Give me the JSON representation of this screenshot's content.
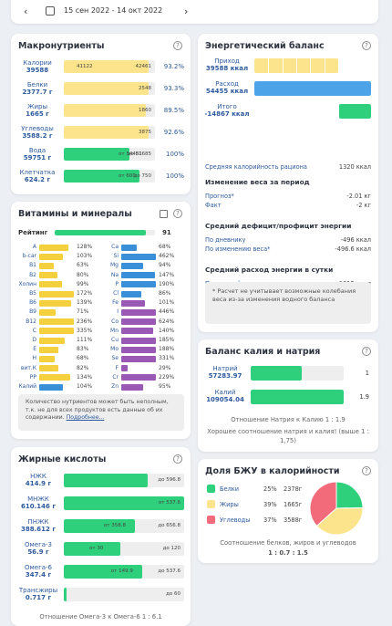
{
  "date_range": "15 сен 2022 - 14 окт 2022",
  "macro": {
    "title": "Макронутриенты",
    "rows": [
      {
        "name": "Калории",
        "value": "39588",
        "m1": "41122",
        "m2": "42461",
        "pct": "93.2%",
        "color": "#fbe48b",
        "fill": 0.93
      },
      {
        "name": "Белки",
        "value": "2377.7 г",
        "m1": "",
        "m2": "2548",
        "pct": "93.3%",
        "color": "#fbe48b",
        "fill": 0.93
      },
      {
        "name": "Жиры",
        "value": "1665 г",
        "m1": "",
        "m2": "1860",
        "pct": "89.5%",
        "color": "#fbe48b",
        "fill": 0.895
      },
      {
        "name": "Углеводы",
        "value": "3588.2 г",
        "m1": "",
        "m2": "3875",
        "pct": "92.6%",
        "color": "#fbe48b",
        "fill": 0.926
      },
      {
        "name": "Вода",
        "value": "59751 г",
        "m1": "от 54451",
        "m2": "до 81685",
        "pct": "100%",
        "color": "#2ed07b",
        "fill": 0.72
      },
      {
        "name": "Клетчатка",
        "value": "624.2 г",
        "m1": "от 600",
        "m2": "до 750",
        "pct": "100%",
        "color": "#2ed07b",
        "fill": 0.83
      }
    ]
  },
  "energy": {
    "title": "Энергетический баланс",
    "rows": [
      {
        "name": "Приход",
        "value": "39588 ккал",
        "color": "#fbe48b",
        "fill": 0.72
      },
      {
        "name": "Расход",
        "value": "54455 ккал",
        "color": "#4da3e8",
        "fill": 1.0
      },
      {
        "name": "Итого",
        "value": "-14867 ккал",
        "color": "#2ed07b",
        "fill": 0.27
      }
    ],
    "avg_label": "Средняя калорийность рациона",
    "avg_value": "1320 ккал",
    "sections": [
      {
        "head": "Изменение веса за период",
        "items": [
          {
            "k": "Прогноз*",
            "v": "-2.01 кг"
          },
          {
            "k": "Факт",
            "v": "-2 кг"
          }
        ]
      },
      {
        "head": "Средний дефицит/профицит энергии",
        "items": [
          {
            "k": "По дневнику",
            "v": "-496 ккал"
          },
          {
            "k": "По изменению веса*",
            "v": "-496.6 ккал"
          }
        ]
      },
      {
        "head": "Средний расход энергии в сутки",
        "items": [
          {
            "k": "По настройкам",
            "v": "1815 ккал"
          },
          {
            "k": "По изменению веса*",
            "v": "1814 ккал"
          }
        ]
      }
    ],
    "note": "* Расчет не учитывает возможные колебания веса из-за изменения водного баланса"
  },
  "vitamins": {
    "title": "Витамины и минералы",
    "rating_label": "Рейтинг",
    "rating_value": "91",
    "left": [
      {
        "n": "A",
        "p": "128%",
        "c": "#f4d03f"
      },
      {
        "n": "b-car",
        "p": "103%",
        "c": "#f4d03f"
      },
      {
        "n": "B1",
        "p": "63%",
        "c": "#f4d03f"
      },
      {
        "n": "B2",
        "p": "80%",
        "c": "#f4d03f"
      },
      {
        "n": "Холин",
        "p": "99%",
        "c": "#f4d03f"
      },
      {
        "n": "B5",
        "p": "172%",
        "c": "#f4d03f"
      },
      {
        "n": "B6",
        "p": "139%",
        "c": "#f4d03f"
      },
      {
        "n": "B9",
        "p": "71%",
        "c": "#f4d03f"
      },
      {
        "n": "B12",
        "p": "236%",
        "c": "#f4d03f"
      },
      {
        "n": "C",
        "p": "335%",
        "c": "#f4d03f"
      },
      {
        "n": "D",
        "p": "111%",
        "c": "#f4d03f"
      },
      {
        "n": "E",
        "p": "83%",
        "c": "#f4d03f"
      },
      {
        "n": "H",
        "p": "68%",
        "c": "#f4d03f"
      },
      {
        "n": "вит.К",
        "p": "82%",
        "c": "#f4d03f"
      },
      {
        "n": "PP",
        "p": "134%",
        "c": "#f4d03f"
      },
      {
        "n": "Калий",
        "p": "104%",
        "c": "#3a8fd9"
      }
    ],
    "right": [
      {
        "n": "Ca",
        "p": "68%",
        "c": "#3a8fd9"
      },
      {
        "n": "Si",
        "p": "462%",
        "c": "#3a8fd9"
      },
      {
        "n": "Mg",
        "p": "94%",
        "c": "#3a8fd9"
      },
      {
        "n": "Na",
        "p": "147%",
        "c": "#3a8fd9"
      },
      {
        "n": "P",
        "p": "190%",
        "c": "#3a8fd9"
      },
      {
        "n": "Cl",
        "p": "86%",
        "c": "#3a8fd9"
      },
      {
        "n": "Fe",
        "p": "101%",
        "c": "#9b59b6"
      },
      {
        "n": "I",
        "p": "446%",
        "c": "#9b59b6"
      },
      {
        "n": "Co",
        "p": "624%",
        "c": "#9b59b6"
      },
      {
        "n": "Mn",
        "p": "140%",
        "c": "#9b59b6"
      },
      {
        "n": "Cu",
        "p": "185%",
        "c": "#9b59b6"
      },
      {
        "n": "Mo",
        "p": "188%",
        "c": "#9b59b6"
      },
      {
        "n": "Se",
        "p": "331%",
        "c": "#9b59b6"
      },
      {
        "n": "F",
        "p": "29%",
        "c": "#9b59b6"
      },
      {
        "n": "Cr",
        "p": "229%",
        "c": "#9b59b6"
      },
      {
        "n": "Zn",
        "p": "95%",
        "c": "#9b59b6"
      }
    ],
    "note": "Количество нутриентов может быть неполным, т.к. не для всех продуктов есть данные об их содержании.",
    "note_link": "Подробнее..."
  },
  "kna": {
    "title": "Баланс калия и натрия",
    "rows": [
      {
        "name": "Натрий",
        "value": "57283.97",
        "num": "1",
        "fill": 0.55
      },
      {
        "name": "Калий",
        "value": "109054.04",
        "num": "1.9",
        "fill": 1.0
      }
    ],
    "ratio": "Отношение Натрия к Калию  1 : 1.9",
    "comment": "Хорошее соотношение натрия и калия! (выше 1 : 1,75)"
  },
  "fatty": {
    "title": "Жирные кислоты",
    "rows": [
      {
        "name": "НЖК",
        "value": "414.9 г",
        "m1": "",
        "m2": "до 596.8",
        "color": "#2ed07b",
        "fill": 0.7
      },
      {
        "name": "МНЖК",
        "value": "610.146 г",
        "m1": "",
        "m2": "от 537.6",
        "color": "#2ed07b",
        "fill": 1.0
      },
      {
        "name": "ПНЖК",
        "value": "388.612 г",
        "m1": "от 358.8",
        "m2": "до 656.8",
        "color": "#2ed07b",
        "fill": 0.59
      },
      {
        "name": "Омега-3",
        "value": "56.9 г",
        "m1": "от 30",
        "m2": "до 120",
        "color": "#2ed07b",
        "fill": 0.47
      },
      {
        "name": "Омега-6",
        "value": "347.4 г",
        "m1": "от 149.9",
        "m2": "до 537.6",
        "color": "#2ed07b",
        "fill": 0.65
      },
      {
        "name": "Трансжиры",
        "value": "0.717 г",
        "m1": "",
        "m2": "до 60",
        "color": "#2ed07b",
        "fill": 0.02
      }
    ],
    "footer": "Отношение Омега-3 к Омега-6  1 : 6.1"
  },
  "bju": {
    "title": "Доля БЖУ в калорийности",
    "rows": [
      {
        "name": "Белки",
        "pct": "25%",
        "val": "2378г",
        "color": "#2ed07b",
        "share": 0.25
      },
      {
        "name": "Жиры",
        "pct": "39%",
        "val": "1665г",
        "color": "#fbe48b",
        "share": 0.39
      },
      {
        "name": "Углеводы",
        "pct": "37%",
        "val": "3588г",
        "color": "#f26b7a",
        "share": 0.37
      }
    ],
    "ratio_label": "Соотношение белков, жиров и углеводов",
    "ratio_value": "1 : 0.7 : 1.5"
  }
}
